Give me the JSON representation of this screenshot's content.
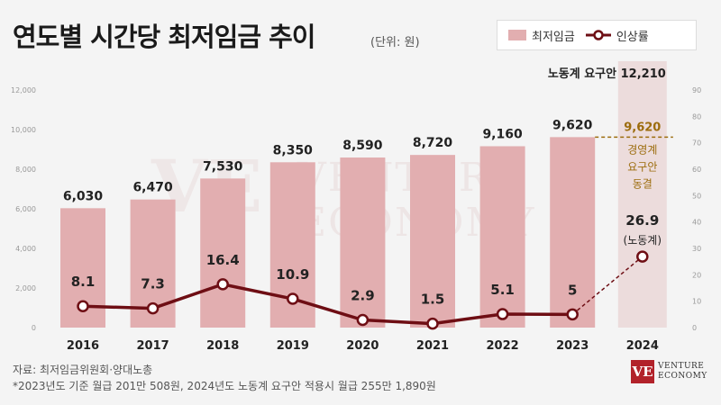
{
  "header": {
    "title": "연도별 시간당 최저임금 추이",
    "unit": "(단위: 원)"
  },
  "legend": {
    "bar_label": "최저임금",
    "line_label": "인상률"
  },
  "chart_data": {
    "type": "bar",
    "categories": [
      "2016",
      "2017",
      "2018",
      "2019",
      "2020",
      "2021",
      "2022",
      "2023",
      "2024"
    ],
    "series": [
      {
        "name": "최저임금",
        "type": "bar",
        "axis": "left",
        "values": [
          6030,
          6470,
          7530,
          8350,
          8590,
          8720,
          9160,
          9620,
          null
        ],
        "labels": [
          "6,030",
          "6,470",
          "7,530",
          "8,350",
          "8,590",
          "8,720",
          "9,160",
          "9,620",
          null
        ]
      },
      {
        "name": "인상률",
        "type": "line",
        "axis": "right",
        "values": [
          8.1,
          7.3,
          16.4,
          10.9,
          2.9,
          1.5,
          5.1,
          5,
          26.9
        ],
        "labels": [
          "8.1",
          "7.3",
          "16.4",
          "10.9",
          "2.9",
          "1.5",
          "5.1",
          "5",
          "26.9"
        ]
      }
    ],
    "y_left": {
      "range": [
        0,
        12000
      ],
      "ticks": [
        "0",
        "2,000",
        "4,000",
        "6,000",
        "8,000",
        "10,000",
        "12,000"
      ]
    },
    "y_right": {
      "range": [
        0,
        90
      ],
      "ticks": [
        "0",
        "10",
        "20",
        "30",
        "40",
        "50",
        "60",
        "70",
        "80",
        "90"
      ]
    },
    "grid": false,
    "legend_position": "top-right",
    "annotations": {
      "labor_demand": {
        "label": "노동계 요구안 12,210",
        "value": 12210
      },
      "employer_demand": {
        "value_label": "9,620",
        "value": 9620,
        "note_lines": [
          "경영계",
          "요구안",
          "동결"
        ]
      },
      "labor_rate_note": "(노동계)"
    },
    "colors": {
      "bar": "#e2aeb0",
      "highlight_column": "#ecdcdc",
      "line": "#6e0e14",
      "employer_accent": "#9c6c0c"
    }
  },
  "watermark": {
    "line1": "VENTURE",
    "line2": "ECONOMY",
    "mark": "VE"
  },
  "footer": {
    "source": "자료: 최저임금위원회·양대노총",
    "footnote": "*2023년도 기준 월급 201만 508원, 2024년도 노동계 요구안 적용시 월급 255만 1,890원"
  },
  "logo": {
    "mark": "VE",
    "line1": "VENTURE",
    "line2": "ECONOMY"
  }
}
